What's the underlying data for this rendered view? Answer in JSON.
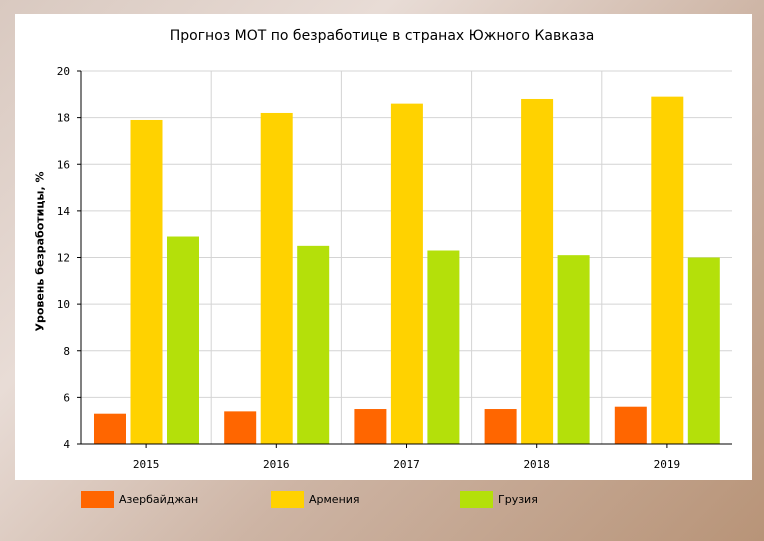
{
  "chart_data": {
    "type": "bar",
    "title": "Прогноз МОТ по безработице в странах Южного Кавказа",
    "xlabel": "",
    "ylabel": "Уровень безработицы, %",
    "ylim": [
      4,
      20
    ],
    "yticks": [
      4,
      6,
      8,
      10,
      12,
      14,
      16,
      18,
      20
    ],
    "categories": [
      "2015",
      "2016",
      "2017",
      "2018",
      "2019"
    ],
    "series": [
      {
        "name": "Азербайджан",
        "color": "#ff6600",
        "values": [
          5.3,
          5.4,
          5.5,
          5.5,
          5.6
        ]
      },
      {
        "name": "Армения",
        "color": "#ffd200",
        "values": [
          17.9,
          18.2,
          18.6,
          18.8,
          18.9
        ]
      },
      {
        "name": "Грузия",
        "color": "#b4e00a",
        "values": [
          12.9,
          12.5,
          12.3,
          12.1,
          12.0
        ]
      }
    ],
    "grid": true,
    "legend_position": "bottom"
  }
}
